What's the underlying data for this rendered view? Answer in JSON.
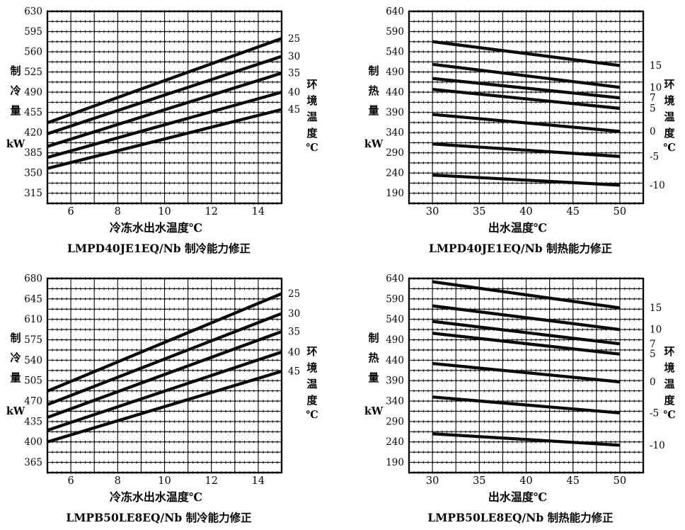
{
  "page": {
    "background": "#ffffff",
    "ink_color": "#0a0a0a"
  },
  "chart_data": [
    {
      "id": "lmpd40je1eq-cooling",
      "type": "line",
      "caption": "LMPD40JE1EQ/Nb 制冷能力修正",
      "xlabel": "冷冻水出水温度℃",
      "ylabel": "制冷量",
      "ylabel_unit": "kW",
      "right_axis_label": "环境温度",
      "right_axis_unit": "℃",
      "grid": "on",
      "legend_position": "right-of-line-ends",
      "xlim": [
        5,
        15
      ],
      "ylim": [
        297.5,
        630
      ],
      "x_grid_step": 1,
      "y_grid_step": 17.5,
      "x_ticks": [
        6,
        8,
        10,
        12,
        14
      ],
      "y_ticks": [
        630,
        595,
        560,
        525,
        490,
        455,
        420,
        385,
        350,
        315
      ],
      "series": [
        {
          "name": "25",
          "x": [
            5,
            15
          ],
          "y": [
            437,
            583
          ]
        },
        {
          "name": "30",
          "x": [
            5,
            15
          ],
          "y": [
            418,
            552
          ]
        },
        {
          "name": "35",
          "x": [
            5,
            15
          ],
          "y": [
            396,
            523
          ]
        },
        {
          "name": "40",
          "x": [
            5,
            15
          ],
          "y": [
            377,
            490
          ]
        },
        {
          "name": "45",
          "x": [
            5,
            15
          ],
          "y": [
            358,
            460
          ]
        }
      ]
    },
    {
      "id": "lmpd40je1eq-heating",
      "type": "line",
      "caption": "LMPD40JE1EQ/Nb 制热能力修正",
      "xlabel": "出水温度℃",
      "ylabel": "制热量",
      "ylabel_unit": "kW",
      "right_axis_label": "环境温度",
      "right_axis_unit": "℃",
      "grid": "on",
      "legend_position": "right-of-line-ends",
      "xlim": [
        27.5,
        52.5
      ],
      "ylim": [
        165,
        640
      ],
      "x_grid_step": 2.5,
      "y_grid_step": 25,
      "x_ticks": [
        30,
        35,
        40,
        45,
        50
      ],
      "y_ticks": [
        640,
        590,
        540,
        490,
        440,
        390,
        340,
        290,
        240,
        190
      ],
      "series": [
        {
          "name": "15",
          "x": [
            30,
            50
          ],
          "y": [
            565,
            506
          ]
        },
        {
          "name": "10",
          "x": [
            30,
            50
          ],
          "y": [
            509,
            452
          ]
        },
        {
          "name": "7",
          "x": [
            30,
            50
          ],
          "y": [
            474,
            426
          ]
        },
        {
          "name": "5",
          "x": [
            30,
            50
          ],
          "y": [
            447,
            400
          ]
        },
        {
          "name": "0",
          "x": [
            30,
            50
          ],
          "y": [
            385,
            343
          ]
        },
        {
          "name": "-5",
          "x": [
            30,
            50
          ],
          "y": [
            312,
            281
          ]
        },
        {
          "name": "-10",
          "x": [
            30,
            50
          ],
          "y": [
            235,
            210
          ]
        }
      ]
    },
    {
      "id": "lmpb50le8eq-cooling",
      "type": "line",
      "caption": "LMPB50LE8EQ/Nb 制冷能力修正",
      "xlabel": "冷冻水出水温度℃",
      "ylabel": "制冷量",
      "ylabel_unit": "kW",
      "right_axis_label": "环境温度",
      "right_axis_unit": "℃",
      "grid": "on",
      "legend_position": "right-of-line-ends",
      "xlim": [
        5,
        15
      ],
      "ylim": [
        347.5,
        680
      ],
      "x_grid_step": 1,
      "y_grid_step": 17.5,
      "x_ticks": [
        6,
        8,
        10,
        12,
        14
      ],
      "y_ticks": [
        680,
        645,
        610,
        575,
        540,
        505,
        470,
        435,
        400,
        365
      ],
      "series": [
        {
          "name": "25",
          "x": [
            5,
            15
          ],
          "y": [
            487,
            654
          ]
        },
        {
          "name": "30",
          "x": [
            5,
            15
          ],
          "y": [
            464,
            620
          ]
        },
        {
          "name": "35",
          "x": [
            5,
            15
          ],
          "y": [
            442,
            589
          ]
        },
        {
          "name": "40",
          "x": [
            5,
            15
          ],
          "y": [
            420,
            554
          ]
        },
        {
          "name": "45",
          "x": [
            5,
            15
          ],
          "y": [
            400,
            521
          ]
        }
      ]
    },
    {
      "id": "lmpb50le8eq-heating",
      "type": "line",
      "caption": "LMPB50LE8EQ/Nb 制热能力修正",
      "xlabel": "出水温度℃",
      "ylabel": "制热量",
      "ylabel_unit": "kW",
      "right_axis_label": "环境温度",
      "right_axis_unit": "℃",
      "grid": "on",
      "legend_position": "right-of-line-ends",
      "xlim": [
        27.5,
        52.5
      ],
      "ylim": [
        165,
        640
      ],
      "x_grid_step": 2.5,
      "y_grid_step": 25,
      "x_ticks": [
        30,
        35,
        40,
        45,
        50
      ],
      "y_ticks": [
        640,
        590,
        540,
        490,
        440,
        390,
        340,
        290,
        240,
        190
      ],
      "series": [
        {
          "name": "15",
          "x": [
            30,
            50
          ],
          "y": [
            632,
            568
          ]
        },
        {
          "name": "10",
          "x": [
            30,
            50
          ],
          "y": [
            573,
            515
          ]
        },
        {
          "name": "7",
          "x": [
            30,
            50
          ],
          "y": [
            535,
            480
          ]
        },
        {
          "name": "5",
          "x": [
            30,
            50
          ],
          "y": [
            506,
            455
          ]
        },
        {
          "name": "0",
          "x": [
            30,
            50
          ],
          "y": [
            432,
            387
          ]
        },
        {
          "name": "-5",
          "x": [
            30,
            50
          ],
          "y": [
            350,
            311
          ]
        },
        {
          "name": "-10",
          "x": [
            30,
            50
          ],
          "y": [
            260,
            232
          ]
        }
      ]
    }
  ]
}
